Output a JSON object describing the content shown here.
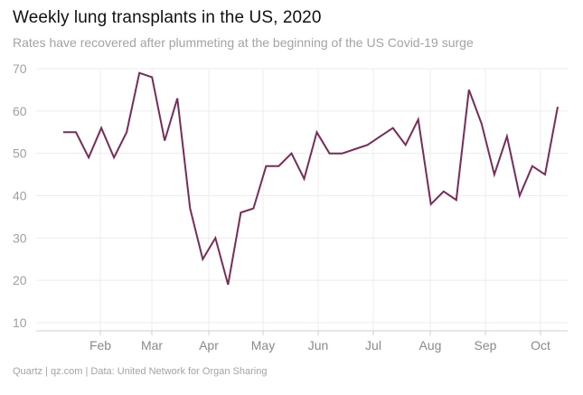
{
  "chart_data": {
    "type": "line",
    "title": "Weekly lung transplants in the US, 2020",
    "subtitle": "Rates have recovered after plummeting at the beginning of the US Covid-19 surge",
    "footer": "Quartz | qz.com | Data: United Network for Organ Sharing",
    "xlabel": "",
    "ylabel": "",
    "ylim": [
      10,
      70
    ],
    "yticks": [
      10,
      20,
      30,
      40,
      50,
      60,
      70
    ],
    "xticks": [
      "Feb",
      "Mar",
      "Apr",
      "May",
      "Jun",
      "Jul",
      "Aug",
      "Sep",
      "Oct"
    ],
    "grid": true,
    "series": [
      {
        "name": "Weekly lung transplants",
        "color": "#7a2b5a",
        "values": [
          55,
          55,
          49,
          56,
          49,
          55,
          69,
          68,
          53,
          63,
          37,
          25,
          30,
          19,
          36,
          37,
          47,
          47,
          50,
          44,
          55,
          50,
          50,
          51,
          52,
          54,
          56,
          52,
          58,
          38,
          41,
          39,
          65,
          57,
          45,
          54,
          40,
          47,
          45,
          61
        ]
      }
    ]
  }
}
